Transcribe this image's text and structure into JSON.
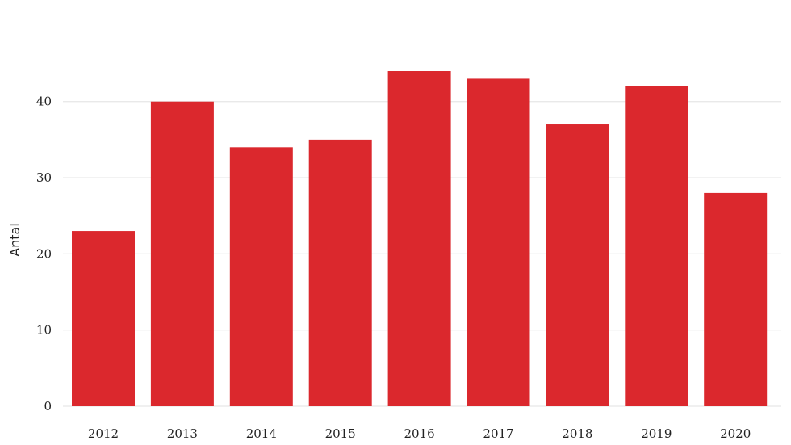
{
  "chart_data": {
    "type": "bar",
    "title": "",
    "xlabel": "",
    "ylabel": "Antal",
    "categories": [
      "2012",
      "2013",
      "2014",
      "2015",
      "2016",
      "2017",
      "2018",
      "2019",
      "2020"
    ],
    "values": [
      23,
      40,
      34,
      35,
      44,
      43,
      37,
      42,
      28
    ],
    "ylim": [
      0,
      44
    ],
    "yticks": [
      0,
      10,
      20,
      30,
      40
    ],
    "ytick_labels": [
      "0",
      "10",
      "20",
      "30",
      "40"
    ],
    "grid": "horizontal",
    "legend": "none",
    "bar_color": "#db282d"
  }
}
